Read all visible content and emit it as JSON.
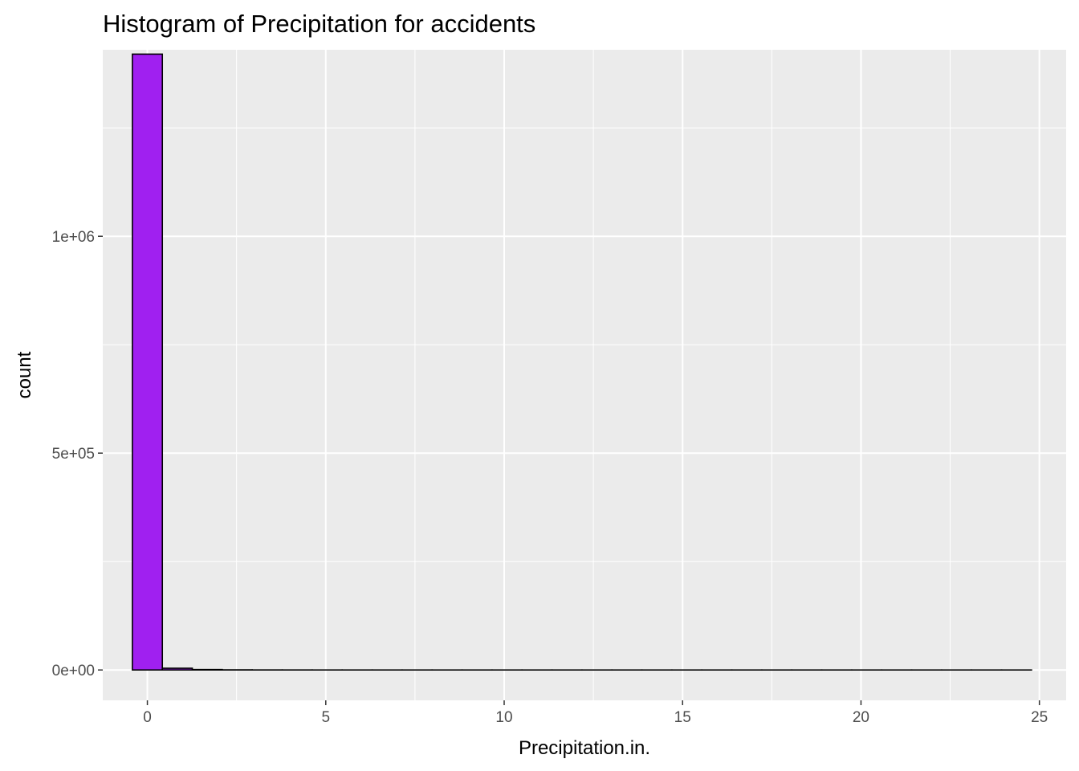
{
  "chart_data": {
    "type": "bar",
    "subtype": "histogram",
    "title": "Histogram of Precipitation for accidents",
    "xlabel": "Precipitation.in.",
    "ylabel": "count",
    "xlim": [
      -1.25,
      25.75
    ],
    "ylim": [
      -70000,
      1430000
    ],
    "x_ticks": [
      {
        "value": 0,
        "label": "0"
      },
      {
        "value": 5,
        "label": "5"
      },
      {
        "value": 10,
        "label": "10"
      },
      {
        "value": 15,
        "label": "15"
      },
      {
        "value": 20,
        "label": "20"
      },
      {
        "value": 25,
        "label": "25"
      }
    ],
    "y_ticks": [
      {
        "value": 0,
        "label": "0e+00"
      },
      {
        "value": 500000,
        "label": "5e+05"
      },
      {
        "value": 1000000,
        "label": "1e+06"
      }
    ],
    "bin_width": 0.84,
    "bins": [
      {
        "x0": -0.42,
        "x1": 0.42,
        "count": 1420000
      },
      {
        "x0": 0.42,
        "x1": 1.26,
        "count": 4000
      },
      {
        "x0": 1.26,
        "x1": 2.1,
        "count": 1000
      },
      {
        "x0": 2.1,
        "x1": 2.94,
        "count": 300
      },
      {
        "x0": 2.94,
        "x1": 3.78,
        "count": 100
      },
      {
        "x0": 3.78,
        "x1": 4.62,
        "count": 50
      },
      {
        "x0": 4.62,
        "x1": 5.46,
        "count": 20
      },
      {
        "x0": 5.46,
        "x1": 6.3,
        "count": 10
      },
      {
        "x0": 6.3,
        "x1": 7.14,
        "count": 5
      },
      {
        "x0": 7.14,
        "x1": 7.98,
        "count": 3
      },
      {
        "x0": 7.98,
        "x1": 8.82,
        "count": 2
      },
      {
        "x0": 8.82,
        "x1": 9.66,
        "count": 2
      },
      {
        "x0": 9.66,
        "x1": 10.5,
        "count": 1
      },
      {
        "x0": 10.5,
        "x1": 11.34,
        "count": 1
      },
      {
        "x0": 11.34,
        "x1": 12.18,
        "count": 0
      },
      {
        "x0": 12.18,
        "x1": 13.02,
        "count": 0
      },
      {
        "x0": 13.02,
        "x1": 13.86,
        "count": 0
      },
      {
        "x0": 13.86,
        "x1": 14.7,
        "count": 0
      },
      {
        "x0": 14.7,
        "x1": 15.54,
        "count": 0
      },
      {
        "x0": 15.54,
        "x1": 16.38,
        "count": 0
      },
      {
        "x0": 16.38,
        "x1": 17.22,
        "count": 0
      },
      {
        "x0": 17.22,
        "x1": 18.06,
        "count": 0
      },
      {
        "x0": 18.06,
        "x1": 18.9,
        "count": 0
      },
      {
        "x0": 18.9,
        "x1": 19.74,
        "count": 0
      },
      {
        "x0": 19.74,
        "x1": 20.58,
        "count": 0
      },
      {
        "x0": 20.58,
        "x1": 21.42,
        "count": 0
      },
      {
        "x0": 21.42,
        "x1": 22.26,
        "count": 0
      },
      {
        "x0": 22.26,
        "x1": 23.1,
        "count": 0
      },
      {
        "x0": 23.1,
        "x1": 23.94,
        "count": 0
      },
      {
        "x0": 23.94,
        "x1": 24.78,
        "count": 1
      }
    ],
    "colors": {
      "bar_fill": "#a020f0",
      "bar_outline": "#000000",
      "panel_background": "#ebebeb",
      "grid": "#ffffff"
    },
    "grid": true,
    "legend": "none"
  }
}
